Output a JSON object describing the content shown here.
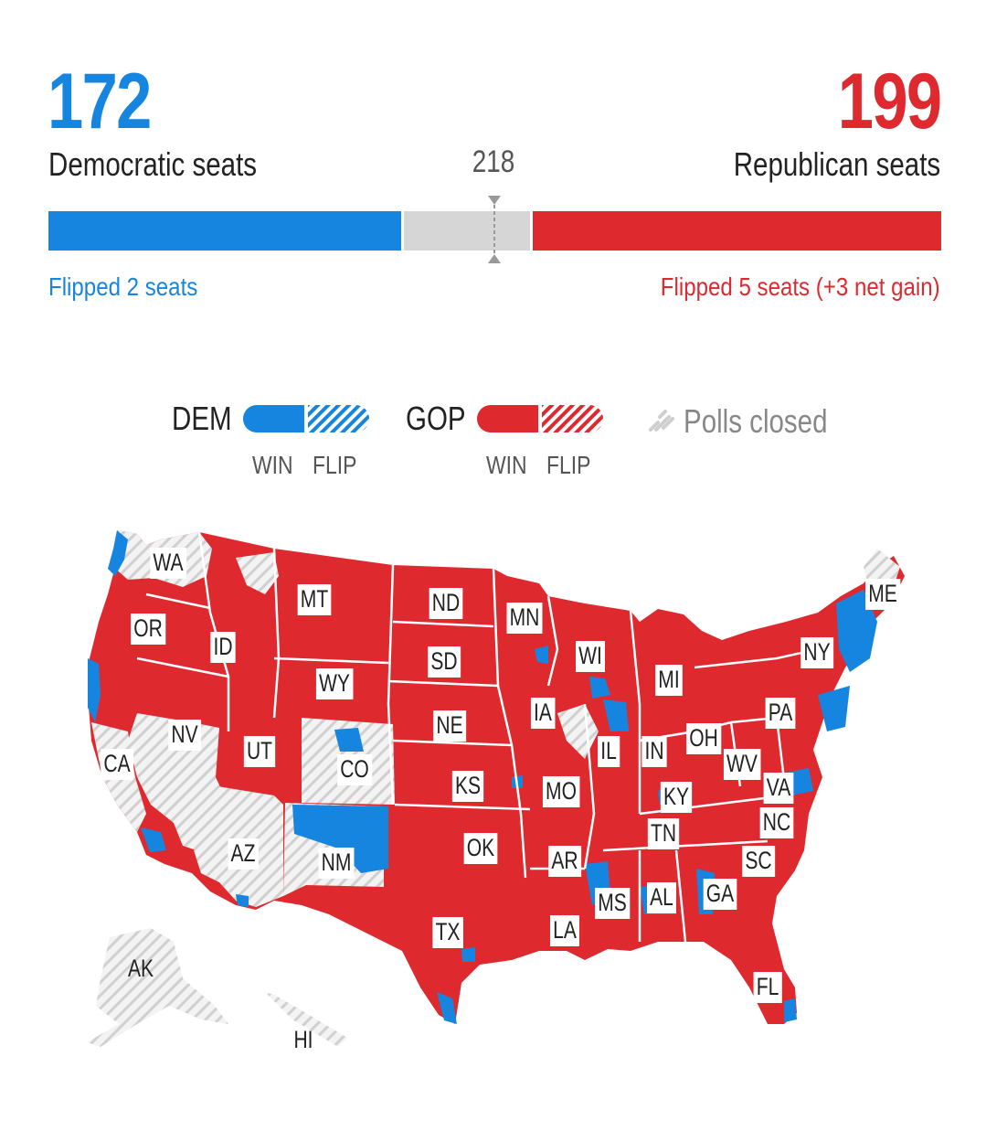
{
  "scoreboard": {
    "dem_seats": "172",
    "dem_label": "Democratic seats",
    "gop_seats": "199",
    "gop_label": "Republican seats",
    "majority": "218",
    "dem_flip": "Flipped 2 seats",
    "gop_flip": "Flipped 5 seats (+3 net gain)",
    "total_seats": 435,
    "dem_count": 172,
    "gop_count": 199,
    "majority_count": 218
  },
  "legend": {
    "dem": "DEM",
    "gop": "GOP",
    "win": "WIN",
    "flip": "FLIP",
    "closed": "Polls closed"
  },
  "colors": {
    "dem": "#1685e0",
    "gop": "#de2a2f",
    "closed": "#d6d6d6",
    "undecided": "#d6d6d6"
  },
  "map": {
    "states": [
      {
        "abbr": "WA",
        "status": "closed"
      },
      {
        "abbr": "OR",
        "status": "gop"
      },
      {
        "abbr": "ID",
        "status": "gop"
      },
      {
        "abbr": "MT",
        "status": "gop"
      },
      {
        "abbr": "ND",
        "status": "gop"
      },
      {
        "abbr": "MN",
        "status": "gop"
      },
      {
        "abbr": "WI",
        "status": "gop"
      },
      {
        "abbr": "MI",
        "status": "gop"
      },
      {
        "abbr": "NY",
        "status": "gop"
      },
      {
        "abbr": "ME",
        "status": "closed"
      },
      {
        "abbr": "SD",
        "status": "gop"
      },
      {
        "abbr": "WY",
        "status": "gop"
      },
      {
        "abbr": "NV",
        "status": "closed"
      },
      {
        "abbr": "CA",
        "status": "closed"
      },
      {
        "abbr": "UT",
        "status": "gop"
      },
      {
        "abbr": "CO",
        "status": "closed"
      },
      {
        "abbr": "NE",
        "status": "gop"
      },
      {
        "abbr": "IA",
        "status": "gop"
      },
      {
        "abbr": "IL",
        "status": "gop"
      },
      {
        "abbr": "IN",
        "status": "gop"
      },
      {
        "abbr": "OH",
        "status": "gop"
      },
      {
        "abbr": "PA",
        "status": "gop"
      },
      {
        "abbr": "WV",
        "status": "gop"
      },
      {
        "abbr": "VA",
        "status": "gop"
      },
      {
        "abbr": "KS",
        "status": "gop"
      },
      {
        "abbr": "MO",
        "status": "gop"
      },
      {
        "abbr": "KY",
        "status": "gop"
      },
      {
        "abbr": "NC",
        "status": "gop"
      },
      {
        "abbr": "TN",
        "status": "gop"
      },
      {
        "abbr": "OK",
        "status": "gop"
      },
      {
        "abbr": "AR",
        "status": "gop"
      },
      {
        "abbr": "SC",
        "status": "gop"
      },
      {
        "abbr": "AZ",
        "status": "closed"
      },
      {
        "abbr": "NM",
        "status": "closed"
      },
      {
        "abbr": "MS",
        "status": "gop"
      },
      {
        "abbr": "AL",
        "status": "gop"
      },
      {
        "abbr": "GA",
        "status": "gop"
      },
      {
        "abbr": "TX",
        "status": "gop"
      },
      {
        "abbr": "LA",
        "status": "gop"
      },
      {
        "abbr": "FL",
        "status": "gop"
      },
      {
        "abbr": "AK",
        "status": "closed"
      },
      {
        "abbr": "HI",
        "status": "closed"
      }
    ]
  }
}
